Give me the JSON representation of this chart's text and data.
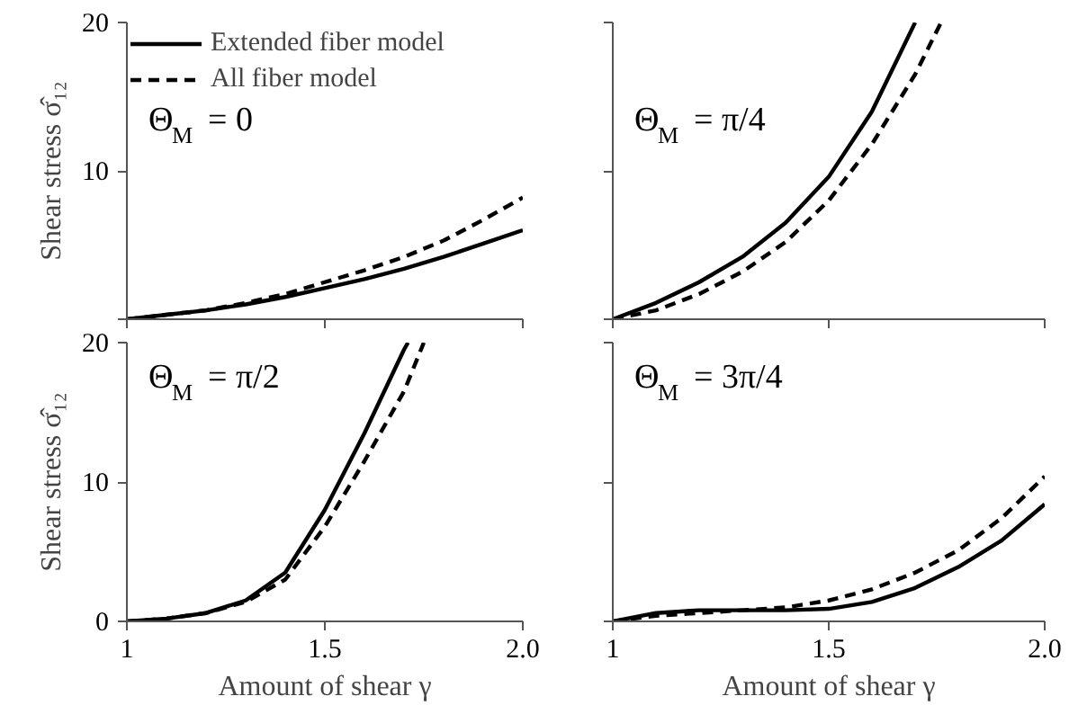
{
  "chart_data": [
    {
      "type": "line",
      "annotations": [
        "Θ$_{M}$ = 0"
      ],
      "ylabel": "Shear stress σ̂₁₂",
      "xlim": [
        1,
        2
      ],
      "ylim": [
        0,
        20
      ],
      "xticks": [
        {
          "value": 1,
          "label": null
        },
        {
          "value": 1.5,
          "label": null
        },
        {
          "value": 2,
          "label": null
        }
      ],
      "yticks": [
        {
          "value": 0,
          "label": null
        },
        10,
        20
      ],
      "tick_labels": "y",
      "grid": false,
      "legend": "top left",
      "series": [
        {
          "name": "Extended fiber model",
          "color": "#000000",
          "line_style": "solid",
          "x": [
            1,
            1.1,
            1.2,
            1.3,
            1.4,
            1.5,
            1.6,
            1.7,
            1.8,
            1.9,
            2.0
          ],
          "values": [
            0,
            0.3,
            0.6,
            1.0,
            1.5,
            2.1,
            2.7,
            3.4,
            4.2,
            5.1,
            6.0
          ]
        },
        {
          "name": "All fiber model",
          "color": "#000000",
          "line_style": "dashed",
          "x": [
            1,
            1.1,
            1.2,
            1.3,
            1.4,
            1.5,
            1.6,
            1.7,
            1.8,
            1.9,
            2.0
          ],
          "values": [
            0,
            0.3,
            0.6,
            1.1,
            1.7,
            2.5,
            3.3,
            4.2,
            5.3,
            6.7,
            8.2
          ]
        }
      ]
    },
    {
      "type": "line",
      "annotations": [
        "Θ$_{M}$ = π/4"
      ],
      "xlim": [
        1,
        2
      ],
      "ylim": [
        0,
        20
      ],
      "xticks": [
        {
          "value": 1,
          "label": null
        },
        {
          "value": 1.5,
          "label": null
        },
        {
          "value": 2,
          "label": null
        }
      ],
      "yticks": [
        {
          "value": 0,
          "label": null
        },
        {
          "value": 10,
          "label": null
        },
        {
          "value": 20,
          "label": null
        }
      ],
      "tick_labels": false,
      "grid": false,
      "series": [
        {
          "color": "#000000",
          "line_style": "solid",
          "x": [
            1,
            1.1,
            1.2,
            1.3,
            1.4,
            1.5,
            1.6,
            1.7
          ],
          "values": [
            0,
            1.1,
            2.5,
            4.2,
            6.5,
            9.6,
            14.0,
            20.0
          ]
        },
        {
          "color": "#000000",
          "line_style": "dashed",
          "x": [
            1,
            1.1,
            1.2,
            1.3,
            1.4,
            1.5,
            1.6,
            1.7,
            1.76
          ],
          "values": [
            0,
            0.6,
            1.7,
            3.2,
            5.2,
            8.0,
            11.8,
            16.5,
            20.0
          ]
        }
      ]
    },
    {
      "type": "line",
      "annotations": [
        "Θ$_{M}$ = π/2"
      ],
      "ylabel": "Shear stress σ̂₁₂",
      "xlabel": "Amount of shear γ",
      "xlim": [
        1,
        2
      ],
      "ylim": [
        0,
        20
      ],
      "xticks": [
        1,
        1.5,
        {
          "value": 2,
          "label": "2.0"
        }
      ],
      "yticks": [
        0,
        10,
        20
      ],
      "grid": false,
      "series": [
        {
          "color": "#000000",
          "line_style": "solid",
          "x": [
            1,
            1.1,
            1.2,
            1.3,
            1.4,
            1.5,
            1.6,
            1.7,
            1.71
          ],
          "values": [
            0,
            0.2,
            0.6,
            1.5,
            3.5,
            8.0,
            13.5,
            19.5,
            20.0
          ]
        },
        {
          "color": "#000000",
          "line_style": "dashed",
          "x": [
            1,
            1.1,
            1.2,
            1.3,
            1.4,
            1.5,
            1.6,
            1.7,
            1.75
          ],
          "values": [
            0,
            0.2,
            0.6,
            1.4,
            3.0,
            6.8,
            11.5,
            16.5,
            20.0
          ]
        }
      ]
    },
    {
      "type": "line",
      "annotations": [
        "Θ$_{M}$ = 3π/4"
      ],
      "xlabel": "Amount of shear γ",
      "xlim": [
        1,
        2
      ],
      "ylim": [
        0,
        20
      ],
      "xticks": [
        1,
        1.5,
        {
          "value": 2,
          "label": "2.0"
        }
      ],
      "yticks": [
        {
          "value": 0,
          "label": null
        },
        {
          "value": 10,
          "label": null
        },
        {
          "value": 20,
          "label": null
        }
      ],
      "tick_labels": "x",
      "grid": false,
      "series": [
        {
          "color": "#000000",
          "line_style": "solid",
          "x": [
            1,
            1.1,
            1.2,
            1.3,
            1.4,
            1.5,
            1.6,
            1.7,
            1.8,
            1.9,
            2.0
          ],
          "values": [
            0,
            0.6,
            0.8,
            0.8,
            0.8,
            0.9,
            1.4,
            2.4,
            3.9,
            5.8,
            8.4
          ]
        },
        {
          "color": "#000000",
          "line_style": "dashed",
          "x": [
            1,
            1.1,
            1.2,
            1.3,
            1.4,
            1.5,
            1.6,
            1.7,
            1.8,
            1.9,
            2.0
          ],
          "values": [
            0,
            0.4,
            0.6,
            0.8,
            1.0,
            1.5,
            2.3,
            3.5,
            5.1,
            7.4,
            10.4
          ]
        }
      ]
    }
  ]
}
